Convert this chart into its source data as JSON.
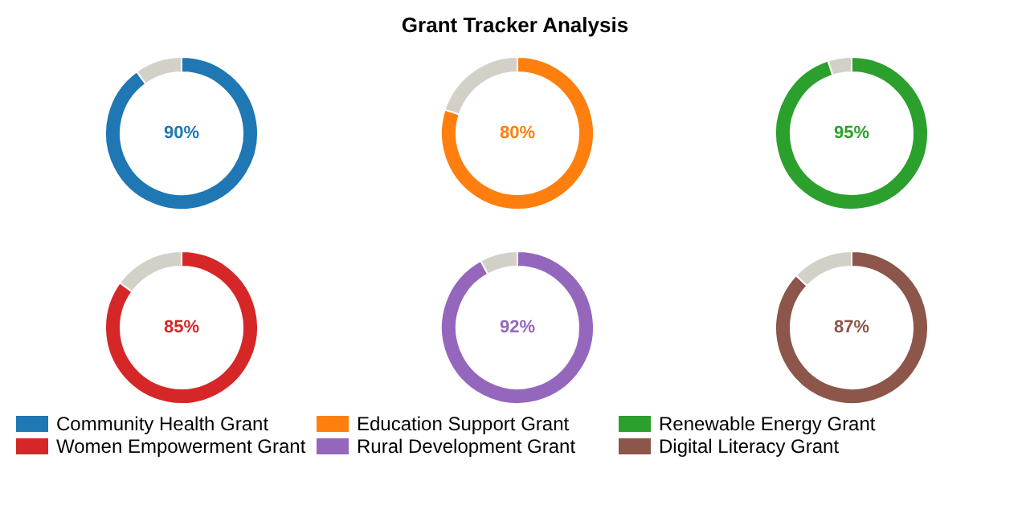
{
  "chart_data": [
    {
      "type": "other",
      "title": "Grant Tracker Analysis"
    },
    {
      "type": "donut",
      "categories": [
        "Community Health Grant",
        null
      ],
      "values": [
        90,
        10
      ],
      "colors": [
        "#1f77b4",
        "#d3d0c8"
      ],
      "value_labels": [
        "90%",
        null
      ],
      "legend": "bottom"
    },
    {
      "type": "donut",
      "categories": [
        "Education Support Grant",
        null
      ],
      "values": [
        80,
        20
      ],
      "colors": [
        "#ff7f0e",
        "#d3d0c8"
      ],
      "value_labels": [
        "80%",
        null
      ],
      "legend": "bottom"
    },
    {
      "type": "donut",
      "categories": [
        "Renewable Energy Grant",
        null
      ],
      "values": [
        95,
        5
      ],
      "colors": [
        "#2ca02c",
        "#d3d0c8"
      ],
      "value_labels": [
        "95%",
        null
      ],
      "legend": "bottom"
    },
    {
      "type": "donut",
      "categories": [
        "Women Empowerment Grant",
        null
      ],
      "values": [
        85,
        15
      ],
      "colors": [
        "#d62728",
        "#d3d0c8"
      ],
      "value_labels": [
        "85%",
        null
      ],
      "legend": "bottom"
    },
    {
      "type": "donut",
      "categories": [
        "Rural Development Grant",
        null
      ],
      "values": [
        92,
        8
      ],
      "colors": [
        "#9467bd",
        "#d3d0c8"
      ],
      "value_labels": [
        "92%",
        null
      ],
      "legend": "bottom"
    },
    {
      "type": "donut",
      "categories": [
        "Digital Literacy Grant",
        null
      ],
      "values": [
        87,
        13
      ],
      "colors": [
        "#8c564b",
        "#d3d0c8"
      ],
      "value_labels": [
        "87%",
        null
      ],
      "legend": "bottom"
    }
  ]
}
